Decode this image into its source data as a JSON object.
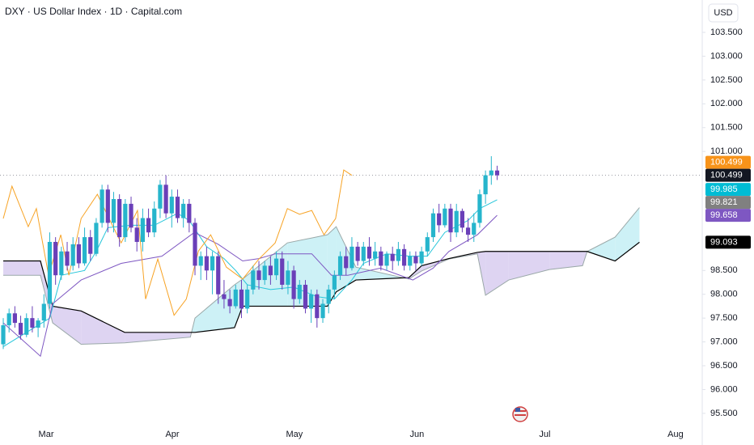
{
  "chart_data": {
    "type": "candlestick",
    "title": "DXY · US Dollar Index · 1D · Capital.com",
    "currency": "USD",
    "xlim": [
      -0.56,
      120.3
    ],
    "xticks": [
      {
        "value": 7.38,
        "label": "Mar"
      },
      {
        "value": 29.1,
        "label": "Apr"
      },
      {
        "value": 50.1,
        "label": "May"
      },
      {
        "value": 71.2,
        "label": "Jun"
      },
      {
        "value": 93.2,
        "label": "Jul"
      },
      {
        "value": 115.7,
        "label": "Aug"
      }
    ],
    "ylim": [
      95.26,
      104.18
    ],
    "yticks": [
      {
        "value": 95.5,
        "label": "95.500"
      },
      {
        "value": 96,
        "label": "96.000"
      },
      {
        "value": 96.5,
        "label": "96.500"
      },
      {
        "value": 97,
        "label": "97.000"
      },
      {
        "value": 97.5,
        "label": "97.500"
      },
      {
        "value": 98,
        "label": "98.000"
      },
      {
        "value": 98.5,
        "label": "98.500"
      },
      {
        "value": 101,
        "label": "101.000"
      },
      {
        "value": 101.5,
        "label": "101.500"
      },
      {
        "value": 102,
        "label": "102.000"
      },
      {
        "value": 102.5,
        "label": "102.500"
      },
      {
        "value": 103,
        "label": "103.000"
      },
      {
        "value": 103.5,
        "label": "103.500"
      }
    ],
    "up_color": "#26b5cc",
    "down_color": "#6a3fb8",
    "x": [
      0,
      1,
      2,
      3,
      4,
      5,
      6,
      7,
      8,
      9,
      10,
      11,
      12,
      13,
      14,
      15,
      16,
      17,
      18,
      19,
      20,
      21,
      22,
      23,
      24,
      25,
      26,
      27,
      28,
      29,
      30,
      31,
      32,
      33,
      34,
      35,
      36,
      37,
      38,
      39,
      40,
      41,
      42,
      43,
      44,
      45,
      46,
      47,
      48,
      49,
      50,
      51,
      52,
      53,
      54,
      55,
      56,
      57,
      58,
      59,
      60,
      61,
      62,
      63,
      64,
      65,
      66,
      67,
      68,
      69,
      70,
      71,
      72,
      73,
      74,
      75,
      76,
      77,
      78,
      79,
      80,
      81,
      82,
      83,
      84,
      85
    ],
    "open": [
      96.95,
      97.35,
      97.6,
      97.4,
      97.15,
      97.5,
      97.3,
      97.45,
      97.8,
      99.1,
      98.4,
      98.9,
      98.6,
      99.05,
      98.65,
      99.2,
      98.85,
      99.5,
      100.2,
      99.5,
      100.0,
      99.2,
      99.9,
      99.4,
      99.1,
      99.6,
      99.3,
      99.8,
      100.3,
      99.7,
      100.05,
      99.6,
      99.9,
      99.5,
      98.6,
      98.8,
      98.5,
      98.8,
      98.0,
      97.9,
      97.75,
      98.1,
      97.7,
      98.1,
      98.5,
      98.3,
      98.6,
      98.4,
      98.75,
      98.2,
      98.5,
      97.9,
      98.2,
      97.7,
      98.0,
      97.5,
      97.8,
      98.1,
      98.4,
      98.8,
      98.55,
      99.0,
      98.7,
      99.0,
      98.75,
      98.9,
      98.6,
      98.85,
      98.7,
      98.95,
      98.6,
      98.8,
      98.65,
      98.9,
      99.2,
      99.7,
      99.45,
      99.8,
      99.3,
      99.75,
      99.4,
      99.25,
      99.5,
      100.1,
      100.5,
      100.6
    ],
    "high": [
      97.5,
      97.7,
      97.75,
      97.55,
      97.6,
      97.75,
      97.5,
      98.0,
      99.3,
      99.2,
      99.0,
      99.1,
      99.2,
      99.2,
      99.4,
      99.35,
      99.6,
      100.3,
      100.3,
      100.15,
      100.1,
      100.0,
      100.05,
      99.6,
      99.8,
      99.8,
      99.95,
      100.4,
      100.5,
      100.2,
      100.2,
      100.0,
      100.0,
      99.6,
      98.9,
      99.0,
      98.9,
      98.9,
      98.3,
      98.1,
      98.2,
      98.3,
      98.2,
      98.6,
      98.7,
      98.7,
      98.8,
      98.9,
      98.9,
      98.7,
      98.6,
      98.3,
      98.3,
      98.1,
      98.1,
      97.9,
      98.2,
      98.5,
      98.9,
      99.0,
      99.2,
      99.1,
      99.1,
      99.2,
      99.1,
      99.0,
      98.9,
      99.0,
      99.1,
      99.05,
      98.9,
      98.9,
      99.0,
      99.3,
      99.8,
      99.9,
      99.9,
      99.9,
      99.9,
      99.8,
      99.6,
      99.7,
      100.2,
      100.6,
      100.9,
      100.7
    ],
    "low": [
      96.85,
      97.2,
      97.3,
      97.05,
      97.1,
      97.2,
      97.1,
      97.3,
      97.7,
      98.2,
      98.3,
      98.5,
      98.5,
      98.55,
      98.6,
      98.7,
      98.8,
      99.4,
      99.3,
      99.3,
      99.0,
      99.1,
      99.3,
      98.9,
      98.9,
      99.2,
      99.2,
      99.6,
      99.6,
      99.4,
      99.5,
      99.4,
      99.3,
      98.4,
      98.3,
      98.3,
      98.0,
      97.8,
      97.7,
      97.6,
      97.7,
      97.5,
      97.6,
      98.0,
      98.1,
      98.2,
      98.2,
      98.3,
      98.1,
      98.0,
      97.7,
      97.8,
      97.6,
      97.4,
      97.3,
      97.4,
      97.6,
      97.9,
      98.3,
      98.4,
      98.5,
      98.6,
      98.6,
      98.6,
      98.6,
      98.5,
      98.5,
      98.5,
      98.6,
      98.5,
      98.5,
      98.5,
      98.6,
      98.8,
      99.1,
      99.3,
      99.4,
      99.1,
      99.2,
      99.3,
      99.1,
      99.1,
      99.4,
      99.9,
      100.3,
      100.4
    ],
    "close": [
      97.35,
      97.6,
      97.4,
      97.15,
      97.5,
      97.3,
      97.45,
      97.8,
      99.1,
      98.4,
      98.9,
      98.6,
      99.05,
      98.65,
      99.2,
      98.85,
      99.5,
      100.2,
      99.5,
      100.0,
      99.2,
      99.9,
      99.4,
      99.1,
      99.6,
      99.3,
      99.8,
      100.3,
      99.7,
      100.05,
      99.6,
      99.9,
      99.5,
      98.6,
      98.8,
      98.5,
      98.8,
      98.0,
      97.9,
      97.75,
      98.1,
      97.7,
      98.1,
      98.5,
      98.3,
      98.6,
      98.4,
      98.75,
      98.2,
      98.5,
      97.9,
      98.2,
      97.7,
      98.0,
      97.5,
      97.8,
      98.1,
      98.4,
      98.8,
      98.55,
      99.0,
      98.7,
      99.0,
      98.75,
      98.9,
      98.6,
      98.85,
      98.7,
      98.95,
      98.6,
      98.8,
      98.65,
      98.9,
      99.2,
      99.7,
      99.45,
      99.8,
      99.3,
      99.75,
      99.4,
      99.25,
      99.5,
      100.1,
      100.5,
      100.6,
      100.499
    ],
    "lines": [
      {
        "color": "#26c6da",
        "x": [
          0,
          4,
          8,
          10,
          14,
          16,
          18,
          22,
          26,
          30,
          32,
          35,
          38,
          40,
          42,
          46,
          50,
          54,
          57,
          60,
          62,
          66,
          70,
          73,
          76,
          80,
          82,
          85
        ],
        "values": [
          96.9,
          97.2,
          97.5,
          98.4,
          98.5,
          98.9,
          99.4,
          99.45,
          99.45,
          99.7,
          99.55,
          99.0,
          98.75,
          98.5,
          98.2,
          98.1,
          98.15,
          97.95,
          97.9,
          98.3,
          98.65,
          98.85,
          98.8,
          98.8,
          99.3,
          99.55,
          99.8,
          99.985
        ]
      },
      {
        "color": "#7e57c2",
        "x": [
          0,
          6.4,
          8.5,
          13.4,
          20.3,
          27.3,
          32.9,
          37,
          41.2,
          44,
          46.8,
          53.1,
          56.5,
          59.3,
          64.9,
          70.5,
          74,
          76.7,
          81.6,
          85
        ],
        "values": [
          97.4,
          96.7,
          97.8,
          98.3,
          98.65,
          98.8,
          99.3,
          99.05,
          98.7,
          98.75,
          98.85,
          98.85,
          98.4,
          98.4,
          98.55,
          98.3,
          98.55,
          98.9,
          99.25,
          99.658
        ]
      },
      {
        "color": "#f7a325",
        "x": [
          0,
          1.5,
          4.3,
          5.7,
          7.8,
          9.9,
          11.3,
          13.4,
          16.2,
          18.9,
          20.3,
          23.1,
          24.5,
          26.6,
          29.4,
          31.5,
          33.6,
          35.7,
          38.4,
          41.2,
          44,
          46.8,
          48.9,
          51,
          53.1,
          55.2,
          57.2,
          58.6,
          60
        ],
        "values": [
          99.59,
          100.27,
          99.42,
          99.8,
          98.4,
          99.25,
          98.4,
          99.59,
          100.1,
          99.42,
          99.08,
          99.76,
          97.9,
          98.74,
          97.56,
          97.9,
          98.91,
          99.25,
          98.57,
          98.32,
          98.74,
          99.08,
          99.8,
          99.68,
          99.76,
          99.25,
          99.59,
          100.61,
          100.499
        ]
      }
    ],
    "cloud": {
      "x": [
        0,
        6.4,
        8.5,
        13.4,
        20.9,
        32.2,
        33,
        39.8,
        41.2,
        48.9,
        55.8,
        57.3,
        60.7,
        69.8,
        72,
        76.7,
        81.6,
        83,
        87,
        94,
        99.7,
        100.5,
        105.3,
        109.5
      ],
      "span_a": [
        98.4,
        98.4,
        97.4,
        96.95,
        96.98,
        97.1,
        97.5,
        98.2,
        98.32,
        99.08,
        99.25,
        99.42,
        98.57,
        98.32,
        98.49,
        98.74,
        98.85,
        97.98,
        98.3,
        98.52,
        98.6,
        98.9,
        99.2,
        99.821
      ],
      "span_b": [
        98.7,
        98.7,
        97.75,
        97.65,
        97.2,
        97.2,
        97.2,
        97.3,
        97.75,
        97.75,
        97.75,
        98.05,
        98.3,
        98.35,
        98.6,
        98.75,
        98.88,
        98.9,
        98.9,
        98.9,
        98.9,
        98.9,
        98.7,
        99.093
      ],
      "span_a_color": "#9aa8a8",
      "span_b_color": "#000000",
      "up_fill": "#c4eef4",
      "down_fill": "#d8ccf0"
    },
    "badges": [
      {
        "value": 100.499,
        "color": "#f7931a"
      },
      {
        "value": 100.499,
        "color": "#131722"
      },
      {
        "value": 99.985,
        "color": "#00bcd4"
      },
      {
        "value": 99.821,
        "color": "#808080"
      },
      {
        "value": 99.658,
        "color": "#7e57c2"
      },
      {
        "value": 99.093,
        "color": "#000000"
      }
    ]
  }
}
